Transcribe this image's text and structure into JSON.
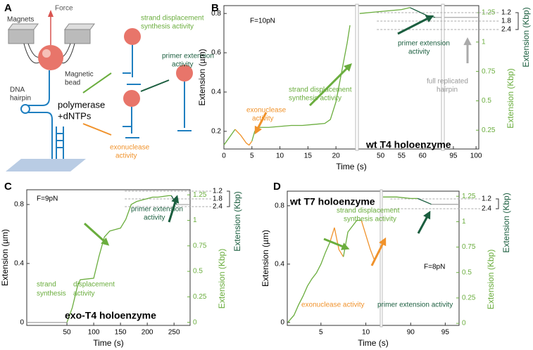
{
  "diagram": {
    "label": "A",
    "texts": [
      "Force",
      "Magnets",
      "Magnetic",
      "bead",
      "DNA",
      "hairpin",
      "polymerase",
      "+dNTPs",
      "strand displacement",
      "synthesis activity",
      "primer extension",
      "activity",
      "exonuclease",
      "activity"
    ]
  },
  "chart_data": [
    {
      "type": "line",
      "label": "B",
      "xlabel": "Time (s)",
      "ylabel": "Extension (µm)",
      "y2label": "Extension (Kbp)",
      "y3label": "Extension (Kbp)",
      "xsegments": [
        {
          "xlim": [
            0,
            23.5
          ],
          "xticks": [
            0,
            5,
            10,
            15,
            20
          ]
        },
        {
          "xlim": [
            44.7,
            64.5
          ],
          "xticks": [
            50,
            55,
            60
          ]
        },
        {
          "xlim": [
            93,
            100.6
          ],
          "xticks": [
            95,
            100
          ]
        }
      ],
      "ylim": [
        0.11,
        0.84
      ],
      "yticks": [
        0.2,
        0.4,
        0.6,
        0.8
      ],
      "y2lim": [
        0.09,
        1.31
      ],
      "y2ticks": [
        0.25,
        0.5,
        0.75,
        1,
        1.25
      ],
      "y3lim": [
        10.9,
        0.7
      ],
      "y3ticks": [
        1.2,
        1.8,
        2.4
      ],
      "series": [
        {
          "color": "#6aad3d",
          "x": [
            0,
            1,
            2
          ],
          "values": [
            0.13,
            0.17,
            0.21
          ]
        },
        {
          "color": "#f0922b",
          "x": [
            2,
            3,
            4,
            4.5,
            5
          ],
          "values": [
            0.21,
            0.18,
            0.14,
            0.13,
            0.15
          ]
        },
        {
          "color": "#6aad3d",
          "x": [
            5,
            5.5,
            6,
            8,
            10,
            12,
            14,
            16,
            18,
            19,
            20,
            21,
            22,
            22.5
          ],
          "values": [
            0.15,
            0.2,
            0.22,
            0.22,
            0.225,
            0.23,
            0.23,
            0.235,
            0.24,
            0.26,
            0.35,
            0.5,
            0.65,
            0.74
          ]
        },
        {
          "color": "#6aad3d",
          "x": [
            45,
            50,
            55,
            57
          ],
          "values": [
            0.8,
            0.81,
            0.82,
            0.83
          ]
        },
        {
          "color": "#1b5e3f",
          "x": [
            57,
            59,
            61,
            63
          ],
          "values": [
            0.83,
            0.81,
            0.79,
            0.78
          ]
        },
        {
          "color": "#aaaaaa",
          "x": [
            63,
            64.5
          ],
          "values": [
            0.78,
            0.78
          ]
        },
        {
          "color": "#aaaaaa",
          "x": [
            93,
            100.6
          ],
          "values": [
            0.78,
            0.78
          ]
        }
      ],
      "annotations": [
        "F=10pN",
        "strand displacement",
        "synthesis activity",
        "exonuclease",
        "activity",
        "primer extension",
        "activity",
        "full replicated",
        "hairpin",
        "wt T4 holoenzyme"
      ]
    },
    {
      "type": "line",
      "label": "C",
      "xlabel": "Time (s)",
      "ylabel": "Extension (µm)",
      "y2label": "Extension (Kbp)",
      "y3label": "Extension (Kbp)",
      "xsegments": [
        {
          "xlim": [
            -25,
            280
          ],
          "xticks": [
            50,
            100,
            150,
            200,
            250
          ]
        }
      ],
      "ylim": [
        -0.02,
        0.9
      ],
      "yticks": [
        0,
        0.4,
        0.8
      ],
      "y2lim": [
        -0.03,
        1.3
      ],
      "y2ticks": [
        0,
        0.25,
        0.5,
        0.75,
        1,
        1.25
      ],
      "y3lim": [
        11.6,
        1.09
      ],
      "y3ticks": [
        1.2,
        1.8,
        2.4
      ],
      "series": [
        {
          "color": "#aaaaaa",
          "x": [
            -25,
            50
          ],
          "values": [
            0,
            0
          ]
        },
        {
          "color": "#6aad3d",
          "x": [
            50,
            60,
            70,
            75,
            100,
            110,
            120,
            130,
            140,
            150,
            160,
            170,
            180,
            190,
            200,
            210,
            220,
            240,
            245
          ],
          "values": [
            0,
            0.1,
            0.25,
            0.29,
            0.3,
            0.45,
            0.58,
            0.62,
            0.63,
            0.64,
            0.7,
            0.8,
            0.82,
            0.83,
            0.84,
            0.85,
            0.85,
            0.86,
            0.86
          ]
        },
        {
          "color": "#1b5e3f",
          "x": [
            245,
            255
          ],
          "values": [
            0.86,
            0.8
          ]
        },
        {
          "color": "#aaaaaa",
          "x": [
            255,
            280
          ],
          "values": [
            0.8,
            0.8
          ]
        }
      ],
      "annotations": [
        "F=9pN",
        "primer extension",
        "activity",
        "strand",
        "displacement",
        "synthesis",
        "activity",
        "exo-T4 holoenzyme"
      ]
    },
    {
      "type": "line",
      "label": "D",
      "xlabel": "Time (s)",
      "ylabel": "Extension (µm)",
      "y2label": "Extension (Kbp)",
      "y3label": "Extension (Kbp)",
      "xsegments": [
        {
          "xlim": [
            1.25,
            11.6
          ],
          "xticks": [
            5,
            10
          ]
        },
        {
          "xlim": [
            85.9,
            97
          ],
          "xticks": [
            90,
            95
          ]
        }
      ],
      "ylim": [
        -0.02,
        0.9
      ],
      "yticks": [
        0,
        0.4,
        0.8
      ],
      "y2lim": [
        -0.02,
        1.3
      ],
      "y2ticks": [
        0,
        0.25,
        0.5,
        0.75,
        1,
        1.25
      ],
      "y3lim": [
        16.6,
        0.26
      ],
      "y3ticks": [
        1.2,
        2.4
      ],
      "series": [
        {
          "color": "#6aad3d",
          "x": [
            1.3,
            2,
            2.5,
            3,
            3.5,
            4,
            4.5,
            5,
            5.5,
            6
          ],
          "values": [
            0,
            0.05,
            0.12,
            0.18,
            0.25,
            0.3,
            0.34,
            0.4,
            0.48,
            0.55
          ]
        },
        {
          "color": "#f0922b",
          "x": [
            6,
            6.5,
            7,
            7.5
          ],
          "values": [
            0.55,
            0.65,
            0.5,
            0.45
          ]
        },
        {
          "color": "#6aad3d",
          "x": [
            7.5,
            8,
            9,
            9.5
          ],
          "values": [
            0.45,
            0.62,
            0.7,
            0.7
          ]
        },
        {
          "color": "#f0922b",
          "x": [
            9.5,
            10,
            10.5,
            11
          ],
          "values": [
            0.7,
            0.6,
            0.5,
            0.42
          ]
        },
        {
          "color": "#6aad3d",
          "x": [
            86,
            88,
            90,
            91
          ],
          "values": [
            0.86,
            0.86,
            0.85,
            0.85
          ]
        },
        {
          "color": "#1b5e3f",
          "x": [
            91,
            92,
            93
          ],
          "values": [
            0.85,
            0.83,
            0.81
          ]
        },
        {
          "color": "#aaaaaa",
          "x": [
            93,
            97
          ],
          "values": [
            0.81,
            0.81
          ]
        }
      ],
      "annotations": [
        "wt T7 holoenzyme",
        "strand displacement",
        "synthesis activity",
        "exonuclease activity",
        "primer extension activity",
        "F=8pN"
      ]
    }
  ]
}
